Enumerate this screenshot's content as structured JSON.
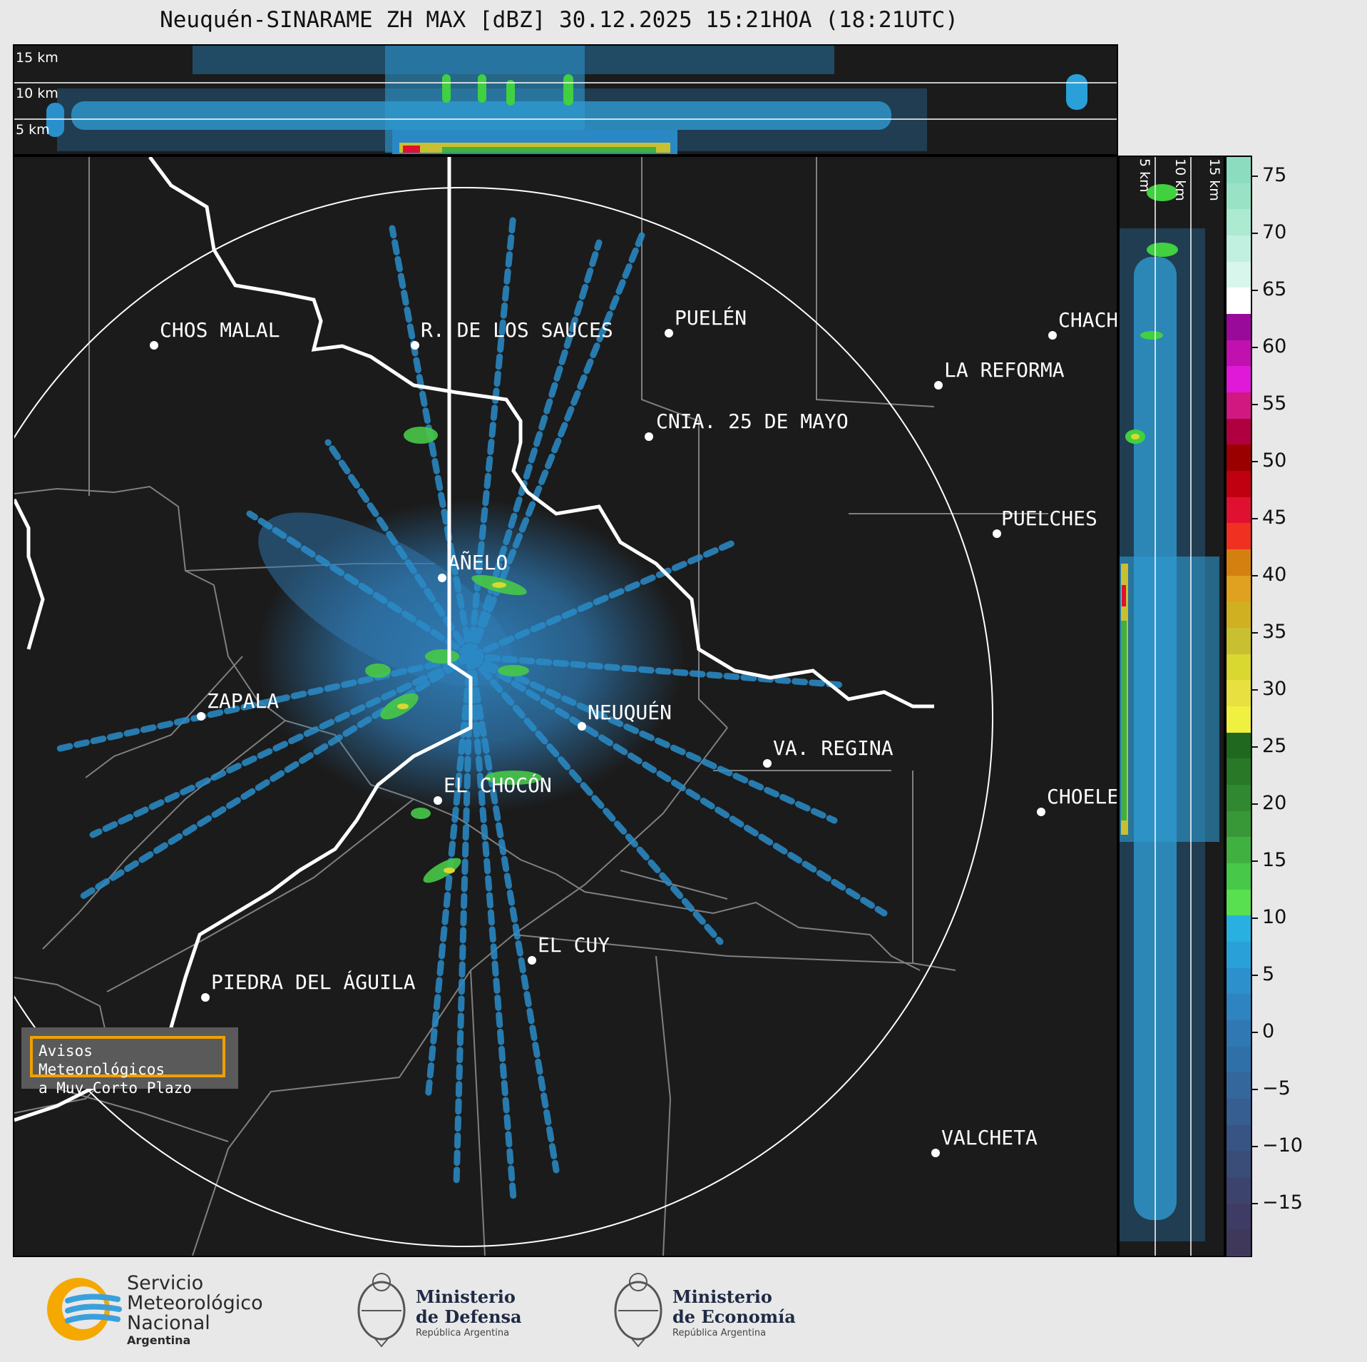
{
  "title": "Neuquén-SINARAME ZH MAX [dBZ] 30.12.2025 15:21HOA (18:21UTC)",
  "top_panel": {
    "altitude_labels": [
      "15 km",
      "10 km",
      "5 km"
    ]
  },
  "side_panel": {
    "altitude_labels": [
      "5 km",
      "10 km",
      "15 km"
    ]
  },
  "cities": [
    {
      "name": "CHOS MALAL"
    },
    {
      "name": "R. DE LOS SAUCES"
    },
    {
      "name": "PUELÉN"
    },
    {
      "name": "CHACH"
    },
    {
      "name": "LA REFORMA"
    },
    {
      "name": "CNIA. 25 DE MAYO"
    },
    {
      "name": "PUELCHES"
    },
    {
      "name": "AÑELO"
    },
    {
      "name": "ZAPALA"
    },
    {
      "name": "NEUQUÉN"
    },
    {
      "name": "VA. REGINA"
    },
    {
      "name": "EL CHOCÓN"
    },
    {
      "name": "CHOELE"
    },
    {
      "name": "EL CUY"
    },
    {
      "name": "PIEDRA DEL ÁGUILA"
    },
    {
      "name": "VALCHETA"
    }
  ],
  "avisos": {
    "line1": "Avisos Meteorológicos",
    "line2": "a Muy Corto Plazo"
  },
  "colorbar": {
    "ticks": [
      "75",
      "70",
      "65",
      "60",
      "55",
      "50",
      "45",
      "40",
      "35",
      "30",
      "25",
      "20",
      "15",
      "10",
      "5",
      "0",
      "−5",
      "−10",
      "−15"
    ],
    "colors": [
      "#8cdcc0",
      "#9ae2c6",
      "#acead2",
      "#c2f0e0",
      "#d8f6ec",
      "#ffffff",
      "#9a0a9a",
      "#c010b0",
      "#e018d8",
      "#d01880",
      "#b00040",
      "#9a0000",
      "#c00010",
      "#e01030",
      "#f03020",
      "#d48010",
      "#e0a020",
      "#d0b020",
      "#c8c030",
      "#d8d830",
      "#e8e040",
      "#f0f040",
      "#206820",
      "#287828",
      "#308830",
      "#389838",
      "#40b040",
      "#48c848",
      "#58e050",
      "#28b0e0",
      "#2aa0d8",
      "#2c90cc",
      "#2e84c0",
      "#3078b4",
      "#3070a8",
      "#34689c",
      "#365e90",
      "#385484",
      "#3a4c78",
      "#3c446e",
      "#3e3c64",
      "#40385a"
    ]
  },
  "logos": {
    "smn": {
      "line1": "Servicio",
      "line2": "Meteorológico",
      "line3": "Nacional",
      "line4": "Argentina"
    },
    "defensa": {
      "line1": "Ministerio",
      "line2": "de Defensa",
      "line3": "República Argentina"
    },
    "economia": {
      "line1": "Ministerio",
      "line2": "de Economía",
      "line3": "República Argentina"
    }
  }
}
